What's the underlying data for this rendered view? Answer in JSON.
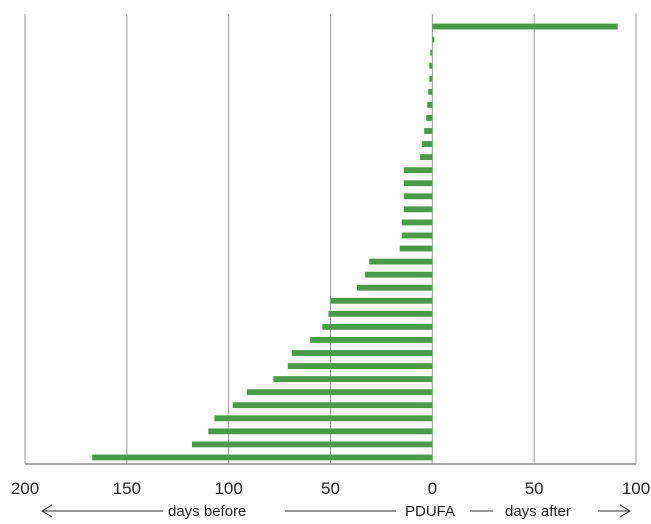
{
  "chart_data": {
    "type": "bar",
    "orientation": "horizontal",
    "title": "",
    "xlabel": "",
    "ylabel": "",
    "xlim": [
      -200,
      100
    ],
    "x_axis_reversed_labels": true,
    "x_ticks": [
      -200,
      -150,
      -100,
      -50,
      0,
      50,
      100
    ],
    "x_tick_labels": [
      "200",
      "150",
      "100",
      "50",
      "0",
      "50",
      "100"
    ],
    "grid": "vertical",
    "legend": "none",
    "series": [
      {
        "color": "#4a9a4a",
        "values": [
          91,
          1,
          -1,
          -1.5,
          -1.5,
          -2,
          -2.5,
          -3,
          -4,
          -5,
          -6,
          -14,
          -14,
          -14,
          -14,
          -15,
          -15,
          -16,
          -31,
          -33,
          -37,
          -50,
          -51,
          -54,
          -60,
          -69,
          -71,
          -78,
          -91,
          -98,
          -107,
          -110,
          -118,
          -167
        ]
      }
    ],
    "annotations": {
      "before_label": "days before",
      "center_label": "PDUFA",
      "after_label": "days after"
    }
  }
}
